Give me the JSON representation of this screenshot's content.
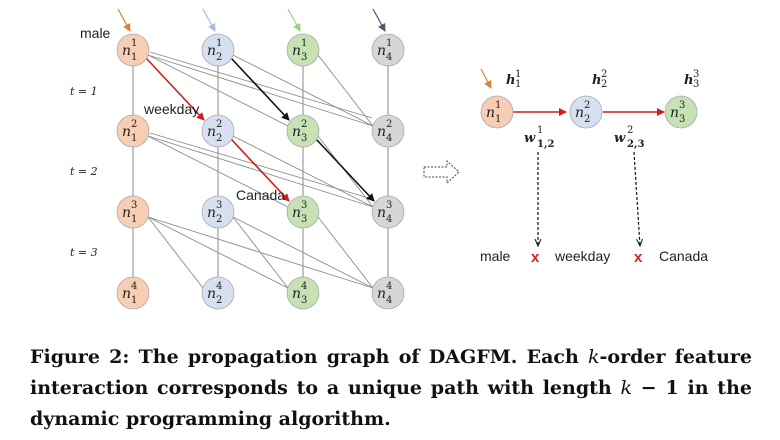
{
  "left_graph": {
    "time_labels": [
      "t = 1",
      "t = 2",
      "t = 3"
    ],
    "annotations": {
      "male": "male",
      "weekday": "weekday",
      "canada": "Canada"
    }
  },
  "right_graph": {
    "h_labels": [
      "h",
      "h",
      "h"
    ],
    "w_labels": [
      "w",
      "w"
    ],
    "features": {
      "male": "male",
      "weekday": "weekday",
      "canada": "Canada"
    },
    "x_mark": "x"
  },
  "caption": {
    "lead": "Figure 2: The propagation graph of DAGFM. Each ",
    "k": "k",
    "mid": "-order feature interaction corresponds to a unique path with length ",
    "k2": "k",
    "tail": " − 1 in the dynamic programming algorithm."
  },
  "colors": {
    "orange_fill": "#f7cdb3",
    "orange_arrow": "#d9823d",
    "blue_fill": "#d7e0f1",
    "blue_arrow": "#aab9df",
    "green_fill": "#c6e2b4",
    "green_arrow": "#9ccf84",
    "gray_fill": "#d6d6d6",
    "gray_arrow": "#4a5870",
    "red": "#d01c1c",
    "black": "#111111"
  }
}
